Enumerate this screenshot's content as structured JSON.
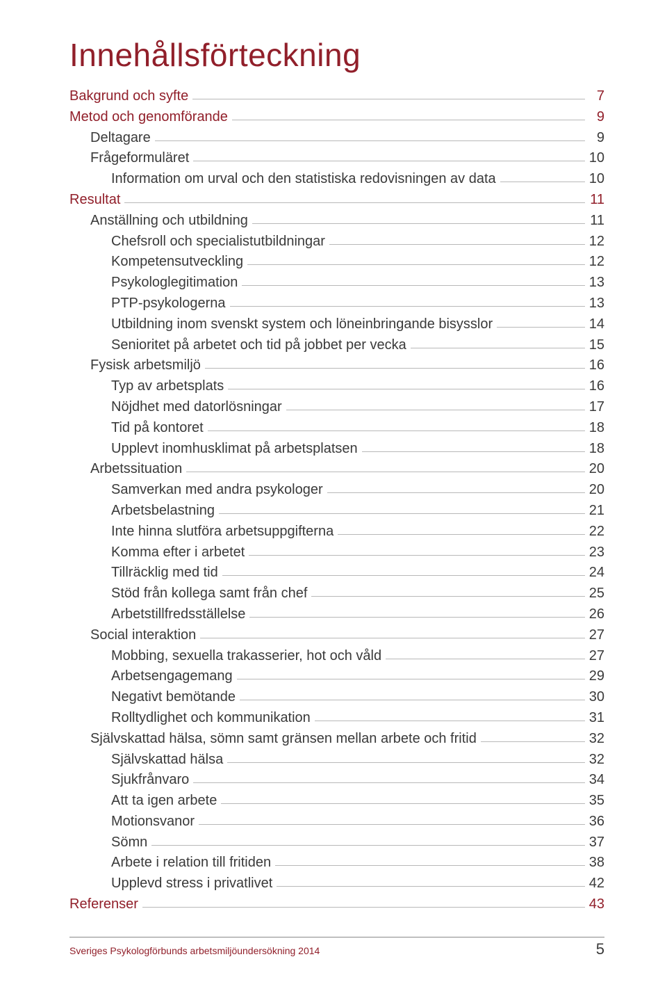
{
  "colors": {
    "heading": "#911f2a",
    "body": "#3a3a3a",
    "leader": "#b8b8b8",
    "footer_rule": "#888888",
    "background": "#ffffff"
  },
  "typography": {
    "title_fontsize": 46,
    "row_fontsize": 20,
    "footer_text_fontsize": 14,
    "footer_num_fontsize": 22,
    "font_family": "Gill Sans"
  },
  "title": "Innehållsförteckning",
  "toc": [
    {
      "label": "Bakgrund och syfte",
      "page": "7",
      "level": 0,
      "heading": true
    },
    {
      "label": "Metod och genomförande",
      "page": "9",
      "level": 0,
      "heading": true
    },
    {
      "label": "Deltagare",
      "page": "9",
      "level": 1,
      "heading": false
    },
    {
      "label": "Frågeformuläret",
      "page": "10",
      "level": 1,
      "heading": false
    },
    {
      "label": "Information om urval och den statistiska redovisningen av data",
      "page": "10",
      "level": 2,
      "heading": false
    },
    {
      "label": "Resultat",
      "page": "11",
      "level": 0,
      "heading": true
    },
    {
      "label": "Anställning och utbildning",
      "page": "11",
      "level": 1,
      "heading": false
    },
    {
      "label": "Chefsroll och specialistutbildningar",
      "page": "12",
      "level": 2,
      "heading": false
    },
    {
      "label": "Kompetensutveckling",
      "page": "12",
      "level": 2,
      "heading": false
    },
    {
      "label": "Psykologlegitimation",
      "page": "13",
      "level": 2,
      "heading": false
    },
    {
      "label": "PTP-psykologerna",
      "page": "13",
      "level": 2,
      "heading": false
    },
    {
      "label": "Utbildning inom svenskt system och löneinbringande bisysslor",
      "page": "14",
      "level": 2,
      "heading": false
    },
    {
      "label": "Senioritet på arbetet och tid på jobbet per vecka",
      "page": "15",
      "level": 2,
      "heading": false
    },
    {
      "label": "Fysisk arbetsmiljö",
      "page": "16",
      "level": 1,
      "heading": false
    },
    {
      "label": "Typ av arbetsplats",
      "page": "16",
      "level": 2,
      "heading": false
    },
    {
      "label": "Nöjdhet med datorlösningar",
      "page": "17",
      "level": 2,
      "heading": false
    },
    {
      "label": "Tid på kontoret",
      "page": "18",
      "level": 2,
      "heading": false
    },
    {
      "label": "Upplevt inomhusklimat på arbetsplatsen",
      "page": "18",
      "level": 2,
      "heading": false
    },
    {
      "label": "Arbetssituation",
      "page": "20",
      "level": 1,
      "heading": false
    },
    {
      "label": "Samverkan med andra psykologer",
      "page": "20",
      "level": 2,
      "heading": false
    },
    {
      "label": "Arbetsbelastning",
      "page": "21",
      "level": 2,
      "heading": false
    },
    {
      "label": "Inte hinna slutföra arbetsuppgifterna",
      "page": "22",
      "level": 2,
      "heading": false
    },
    {
      "label": "Komma efter i arbetet",
      "page": "23",
      "level": 2,
      "heading": false
    },
    {
      "label": "Tillräcklig med tid",
      "page": "24",
      "level": 2,
      "heading": false
    },
    {
      "label": "Stöd från kollega samt från chef",
      "page": "25",
      "level": 2,
      "heading": false
    },
    {
      "label": "Arbetstillfredsställelse",
      "page": "26",
      "level": 2,
      "heading": false
    },
    {
      "label": "Social interaktion",
      "page": "27",
      "level": 1,
      "heading": false
    },
    {
      "label": "Mobbing, sexuella trakasserier, hot och våld",
      "page": "27",
      "level": 2,
      "heading": false
    },
    {
      "label": "Arbetsengagemang",
      "page": "29",
      "level": 2,
      "heading": false
    },
    {
      "label": "Negativt bemötande",
      "page": "30",
      "level": 2,
      "heading": false
    },
    {
      "label": "Rolltydlighet och kommunikation",
      "page": "31",
      "level": 2,
      "heading": false
    },
    {
      "label": "Självskattad hälsa, sömn samt gränsen mellan arbete och fritid",
      "page": "32",
      "level": 1,
      "heading": false
    },
    {
      "label": "Självskattad hälsa",
      "page": "32",
      "level": 2,
      "heading": false
    },
    {
      "label": "Sjukfrånvaro",
      "page": "34",
      "level": 2,
      "heading": false
    },
    {
      "label": "Att ta igen arbete",
      "page": "35",
      "level": 2,
      "heading": false
    },
    {
      "label": "Motionsvanor",
      "page": "36",
      "level": 2,
      "heading": false
    },
    {
      "label": "Sömn",
      "page": "37",
      "level": 2,
      "heading": false
    },
    {
      "label": "Arbete i relation till fritiden",
      "page": "38",
      "level": 2,
      "heading": false
    },
    {
      "label": "Upplevd stress i privatlivet",
      "page": "42",
      "level": 2,
      "heading": false
    },
    {
      "label": "Referenser",
      "page": "43",
      "level": 0,
      "heading": true
    }
  ],
  "footer": {
    "text": "Sveriges Psykologförbunds arbetsmiljöundersökning 2014",
    "page_number": "5"
  }
}
